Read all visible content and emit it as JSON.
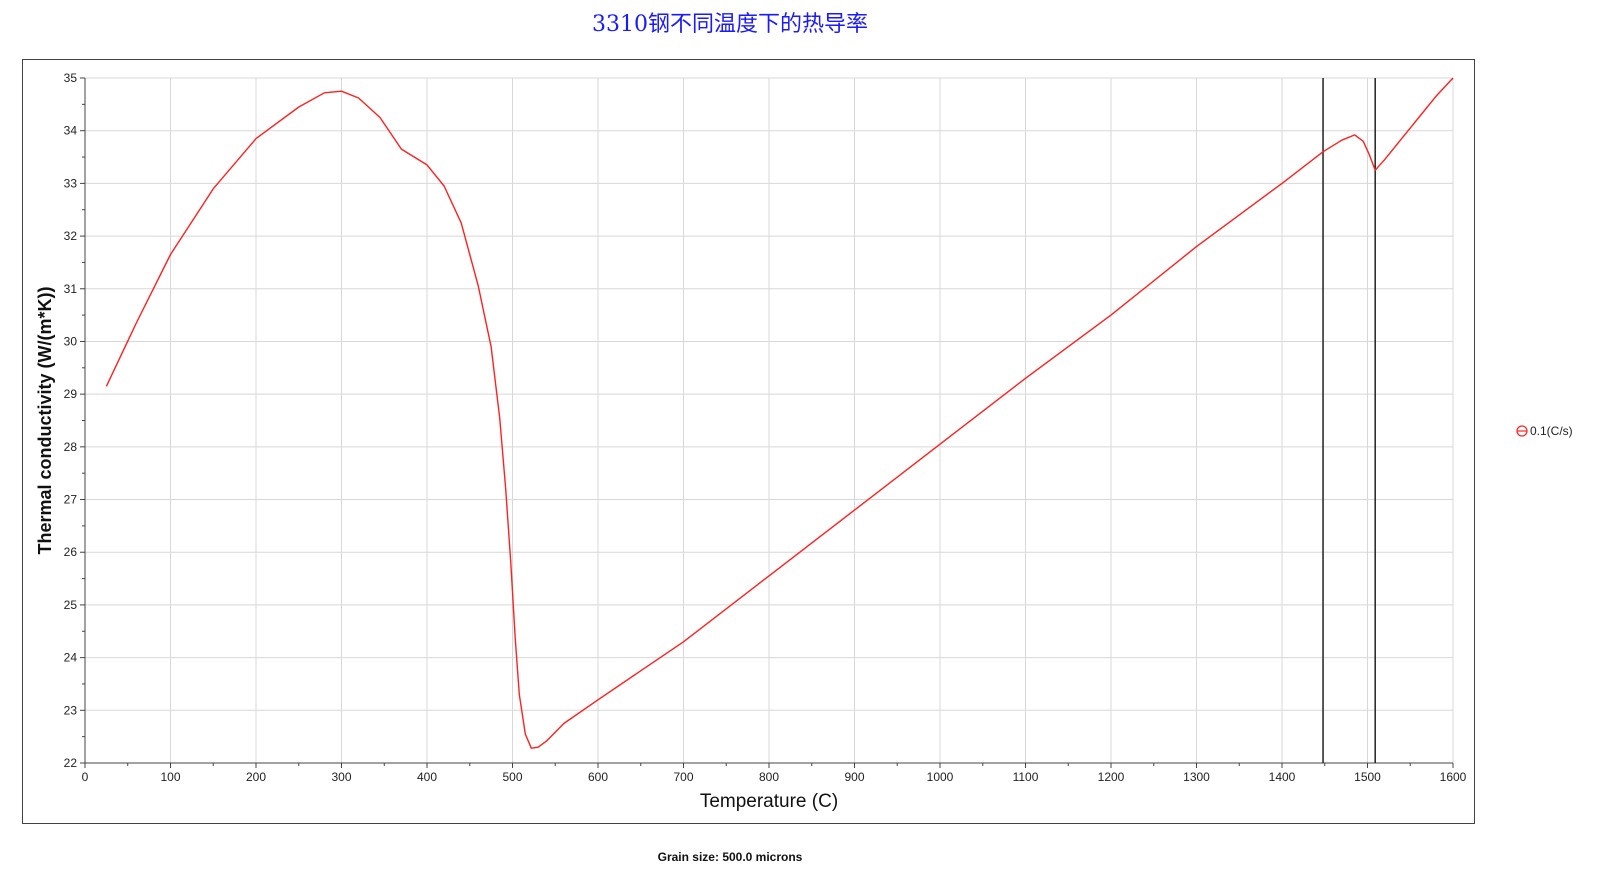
{
  "page": {
    "title": "3310钢不同温度下的热导率",
    "footer": "Grain size: 500.0 microns"
  },
  "legend": {
    "label": "0.1(C/s)",
    "symbol": "circle-minus-icon"
  },
  "colors": {
    "title": "#1a1aff",
    "series": "#ff2020",
    "grid": "#d8d8d8",
    "axis": "#444444",
    "marker_line": "#222222"
  },
  "chart_data": {
    "type": "line",
    "title": "3310钢不同温度下的热导率",
    "xlabel": "Temperature (C)",
    "ylabel": "Thermal conductivity (W/(m*K))",
    "xlim": [
      0,
      1600
    ],
    "ylim": [
      22,
      35
    ],
    "x_ticks": [
      0,
      100,
      200,
      300,
      400,
      500,
      600,
      700,
      800,
      900,
      1000,
      1100,
      1200,
      1300,
      1400,
      1500,
      1600
    ],
    "y_ticks": [
      22,
      23,
      24,
      25,
      26,
      27,
      28,
      29,
      30,
      31,
      32,
      33,
      34,
      35
    ],
    "grid": true,
    "legend_position": "right",
    "vertical_lines": [
      1448,
      1509
    ],
    "series": [
      {
        "name": "0.1(C/s)",
        "x": [
          25,
          60,
          100,
          150,
          200,
          250,
          280,
          300,
          320,
          345,
          370,
          400,
          420,
          440,
          460,
          475,
          485,
          492,
          498,
          503,
          508,
          515,
          522,
          530,
          540,
          560,
          600,
          700,
          800,
          900,
          1000,
          1100,
          1200,
          1300,
          1400,
          1448,
          1470,
          1485,
          1495,
          1502,
          1509,
          1520,
          1540,
          1560,
          1580,
          1600
        ],
        "y": [
          29.15,
          30.35,
          31.65,
          32.9,
          33.85,
          34.45,
          34.72,
          34.75,
          34.62,
          34.25,
          33.65,
          33.35,
          32.95,
          32.25,
          31.05,
          29.9,
          28.55,
          27.2,
          25.8,
          24.4,
          23.3,
          22.55,
          22.28,
          22.3,
          22.42,
          22.75,
          23.2,
          24.3,
          25.55,
          26.8,
          28.05,
          29.3,
          30.5,
          31.8,
          33.0,
          33.6,
          33.82,
          33.92,
          33.8,
          33.55,
          33.25,
          33.45,
          33.85,
          34.25,
          34.65,
          35.0
        ]
      }
    ]
  }
}
